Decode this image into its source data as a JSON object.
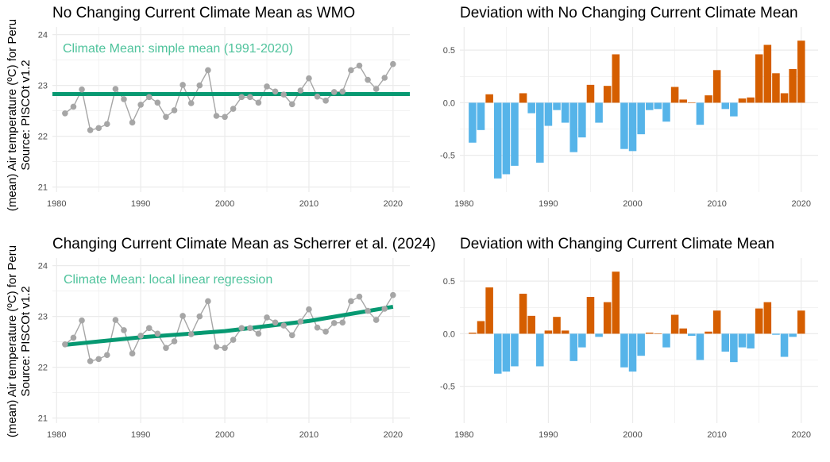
{
  "figure": {
    "ylabel_line1": "(mean) Air temperature (ºC) for Peru",
    "ylabel_line2": "Source: PISCOt v1.2"
  },
  "colors": {
    "mean_line": "#079972",
    "annotation": "#4FC39C",
    "obs_points": "#A6A6A6",
    "positive": "#D55E00",
    "negative": "#56B4E9",
    "grid": "#ebebeb"
  },
  "chart_data": [
    {
      "id": "p1",
      "type": "line",
      "title": "No Changing Current Climate Mean as WMO",
      "annotation": "Climate Mean: simple mean (1991-2020)",
      "xlim": [
        1979.5,
        2022
      ],
      "ylim": [
        20.9,
        24.15
      ],
      "xticks": [
        1980,
        1990,
        2000,
        2010,
        2020
      ],
      "yticks": [
        21,
        22,
        23,
        24
      ],
      "grid": true,
      "x": [
        1981,
        1982,
        1983,
        1984,
        1985,
        1986,
        1987,
        1988,
        1989,
        1990,
        1991,
        1992,
        1993,
        1994,
        1995,
        1996,
        1997,
        1998,
        1999,
        2000,
        2001,
        2002,
        2003,
        2004,
        2005,
        2006,
        2007,
        2008,
        2009,
        2010,
        2011,
        2012,
        2013,
        2014,
        2015,
        2016,
        2017,
        2018,
        2019,
        2020
      ],
      "values": [
        22.45,
        22.58,
        22.92,
        22.12,
        22.16,
        22.24,
        22.93,
        22.73,
        22.27,
        22.62,
        22.77,
        22.66,
        22.38,
        22.51,
        23.01,
        22.65,
        23.0,
        23.3,
        22.4,
        22.38,
        22.54,
        22.77,
        22.77,
        22.66,
        22.98,
        22.88,
        22.82,
        22.63,
        22.9,
        23.14,
        22.78,
        22.7,
        22.87,
        22.88,
        23.3,
        23.39,
        23.11,
        22.93,
        23.15,
        23.42
      ],
      "mean_line": {
        "x": [
          1979.5,
          2022
        ],
        "y": [
          22.83,
          22.83
        ]
      }
    },
    {
      "id": "p2",
      "type": "bar",
      "title": "Deviation with No Changing Current Climate Mean",
      "xlim": [
        1979.5,
        2022
      ],
      "ylim": [
        -0.85,
        0.72
      ],
      "xticks": [
        1980,
        1990,
        2000,
        2010,
        2020
      ],
      "yticks": [
        -0.5,
        0.0,
        0.5
      ],
      "ytick_labels": [
        "-0.5",
        "0.0",
        "0.5"
      ],
      "grid": true,
      "x": [
        1981,
        1982,
        1983,
        1984,
        1985,
        1986,
        1987,
        1988,
        1989,
        1990,
        1991,
        1992,
        1993,
        1994,
        1995,
        1996,
        1997,
        1998,
        1999,
        2000,
        2001,
        2002,
        2003,
        2004,
        2005,
        2006,
        2007,
        2008,
        2009,
        2010,
        2011,
        2012,
        2013,
        2014,
        2015,
        2016,
        2017,
        2018,
        2019,
        2020
      ],
      "values": [
        -0.38,
        -0.26,
        0.08,
        -0.72,
        -0.68,
        -0.6,
        0.09,
        -0.1,
        -0.57,
        -0.22,
        -0.07,
        -0.19,
        -0.47,
        -0.33,
        0.17,
        -0.19,
        0.16,
        0.46,
        -0.44,
        -0.46,
        -0.3,
        -0.07,
        -0.06,
        -0.18,
        0.15,
        0.03,
        0.0,
        -0.21,
        0.07,
        0.31,
        -0.06,
        -0.13,
        0.04,
        0.05,
        0.46,
        0.55,
        0.28,
        0.09,
        0.32,
        0.59
      ]
    },
    {
      "id": "p3",
      "type": "line",
      "title": "Changing Current Climate Mean as Scherrer et al. (2024)",
      "annotation": "Climate Mean: local linear regression",
      "xlim": [
        1979.5,
        2022
      ],
      "ylim": [
        20.9,
        24.15
      ],
      "xticks": [
        1980,
        1990,
        2000,
        2010,
        2020
      ],
      "yticks": [
        21,
        22,
        23,
        24
      ],
      "grid": true,
      "x": [
        1981,
        1982,
        1983,
        1984,
        1985,
        1986,
        1987,
        1988,
        1989,
        1990,
        1991,
        1992,
        1993,
        1994,
        1995,
        1996,
        1997,
        1998,
        1999,
        2000,
        2001,
        2002,
        2003,
        2004,
        2005,
        2006,
        2007,
        2008,
        2009,
        2010,
        2011,
        2012,
        2013,
        2014,
        2015,
        2016,
        2017,
        2018,
        2019,
        2020
      ],
      "values": [
        22.45,
        22.58,
        22.92,
        22.12,
        22.16,
        22.24,
        22.93,
        22.73,
        22.27,
        22.62,
        22.77,
        22.66,
        22.38,
        22.51,
        23.01,
        22.65,
        23.0,
        23.3,
        22.4,
        22.38,
        22.54,
        22.77,
        22.77,
        22.66,
        22.98,
        22.88,
        22.82,
        22.63,
        22.9,
        23.14,
        22.78,
        22.7,
        22.87,
        22.88,
        23.3,
        23.39,
        23.11,
        22.93,
        23.15,
        23.42
      ],
      "mean_line": {
        "x": [
          1981,
          1990,
          2000,
          2010,
          2020
        ],
        "y": [
          22.44,
          22.59,
          22.71,
          22.91,
          23.19
        ]
      }
    },
    {
      "id": "p4",
      "type": "bar",
      "title": "Deviation with Changing Current Climate Mean",
      "xlim": [
        1979.5,
        2022
      ],
      "ylim": [
        -0.85,
        0.72
      ],
      "xticks": [
        1980,
        1990,
        2000,
        2010,
        2020
      ],
      "yticks": [
        -0.5,
        0.0,
        0.5
      ],
      "ytick_labels": [
        "-0.5",
        "0.0",
        "0.5"
      ],
      "grid": true,
      "x": [
        1981,
        1982,
        1983,
        1984,
        1985,
        1986,
        1987,
        1988,
        1989,
        1990,
        1991,
        1992,
        1993,
        1994,
        1995,
        1996,
        1997,
        1998,
        1999,
        2000,
        2001,
        2002,
        2003,
        2004,
        2005,
        2006,
        2007,
        2008,
        2009,
        2010,
        2011,
        2012,
        2013,
        2014,
        2015,
        2016,
        2017,
        2018,
        2019,
        2020
      ],
      "values": [
        0.01,
        0.12,
        0.44,
        -0.38,
        -0.36,
        -0.31,
        0.38,
        0.17,
        -0.31,
        0.03,
        0.16,
        0.03,
        -0.26,
        -0.13,
        0.35,
        -0.03,
        0.3,
        0.59,
        -0.32,
        -0.36,
        -0.21,
        0.01,
        0.0,
        -0.13,
        0.18,
        0.05,
        -0.02,
        -0.25,
        0.02,
        0.22,
        -0.17,
        -0.27,
        -0.13,
        -0.14,
        0.24,
        0.3,
        -0.01,
        -0.22,
        -0.03,
        0.22
      ]
    }
  ]
}
